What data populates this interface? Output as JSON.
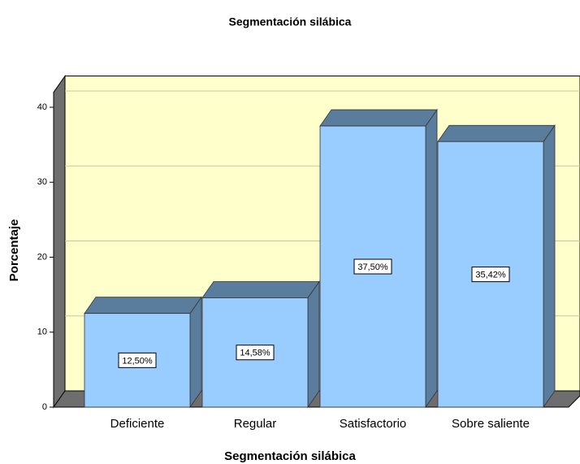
{
  "chart_data": {
    "type": "bar",
    "title": "Segmentación silábica",
    "x_label": "Segmentación silábica",
    "y_label": "Porcentaje",
    "categories": [
      "Deficiente",
      "Regular",
      "Satisfactorio",
      "Sobre saliente"
    ],
    "values": [
      12.5,
      14.58,
      37.5,
      35.42
    ],
    "value_labels": [
      "12,50%",
      "14,58%",
      "37,50%",
      "35,42%"
    ],
    "color": "#99ccff",
    "ylim": [
      0,
      42
    ],
    "yticks": [
      0,
      10,
      20,
      30,
      40
    ],
    "grid": true
  }
}
